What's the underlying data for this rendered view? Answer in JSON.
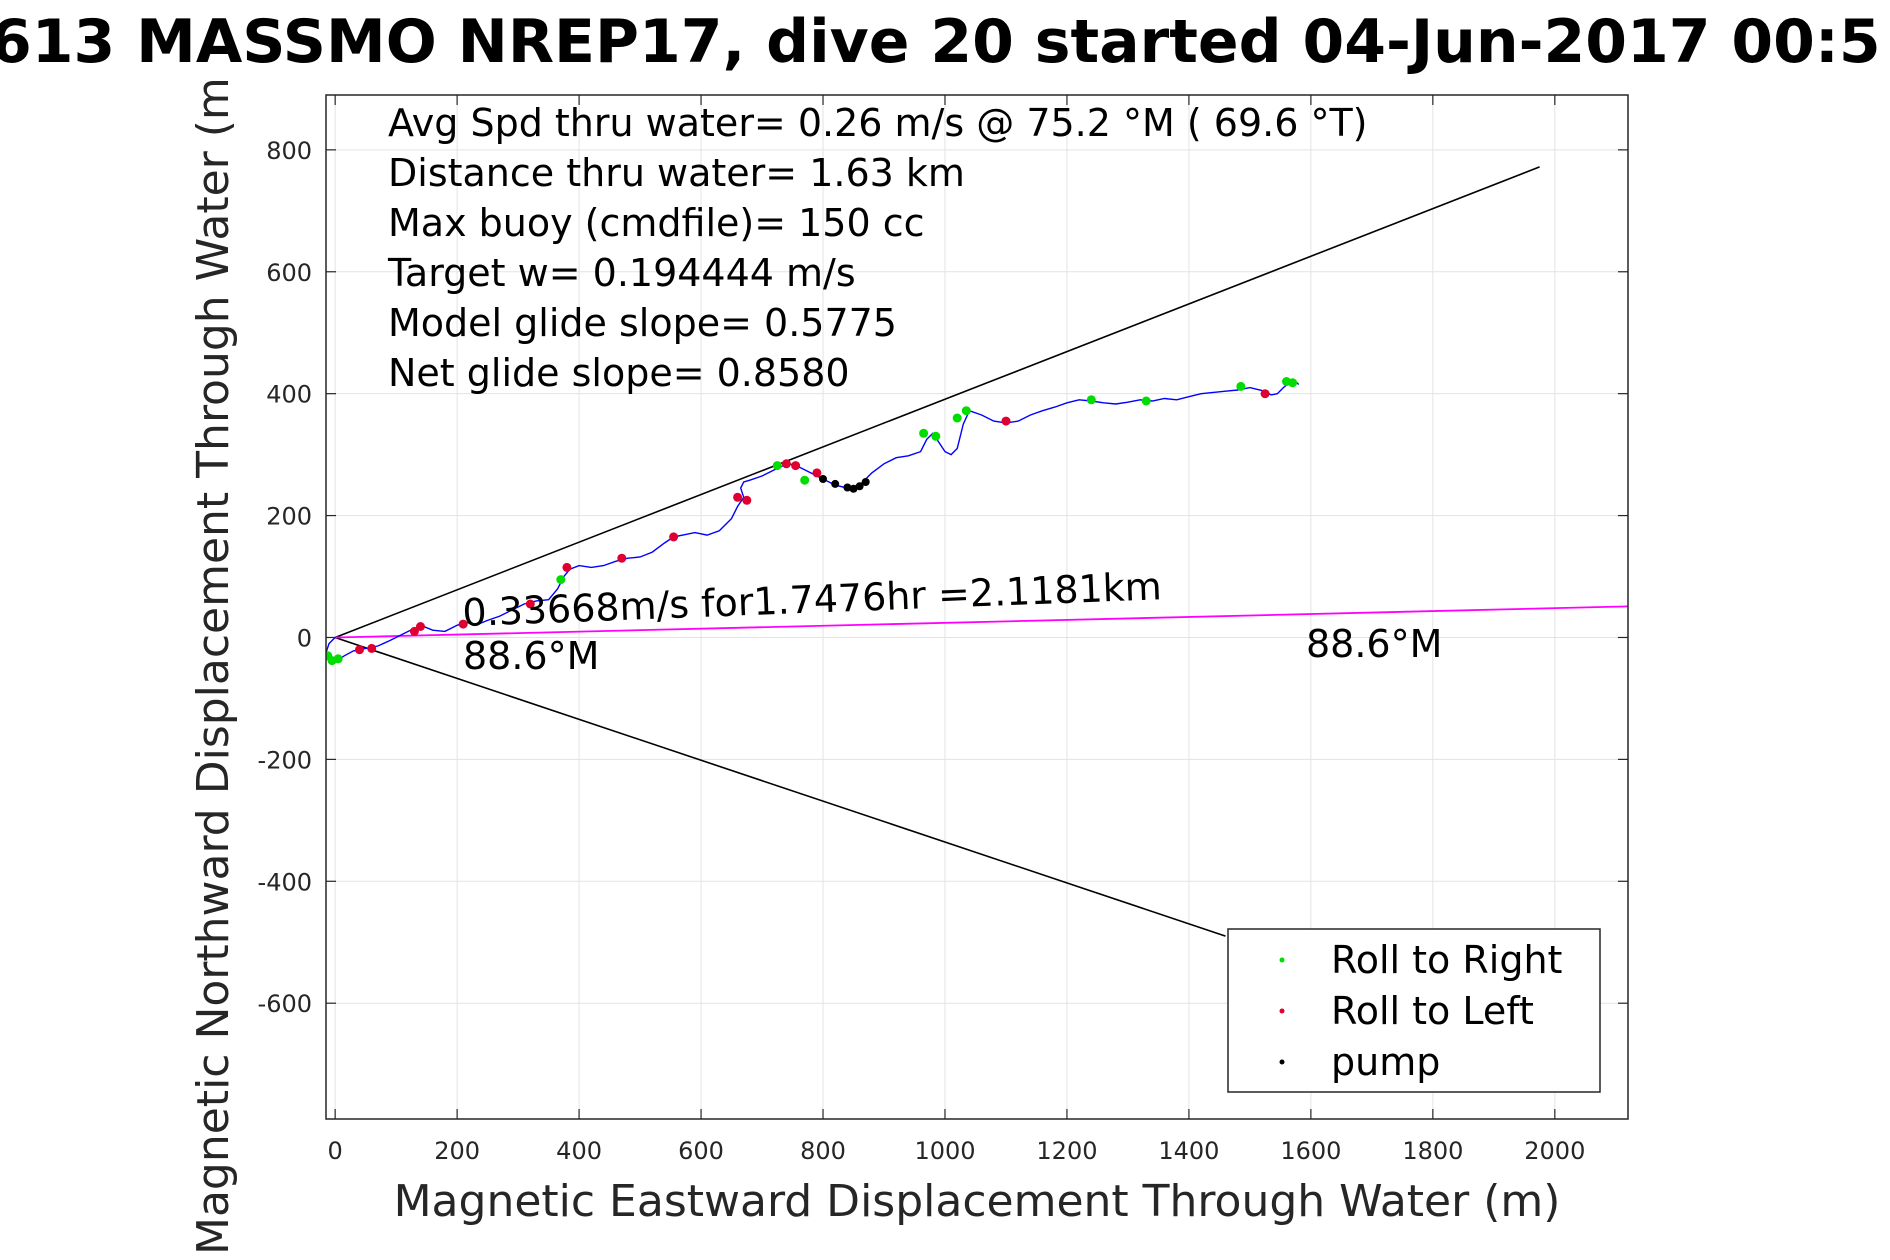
{
  "chart_data": {
    "type": "line",
    "title": "613 MASSMO NREP17, dive 20 started 04-Jun-2017 00:5",
    "xlabel": "Magnetic Eastward Displacement Through Water (m)",
    "ylabel": "Magnetic Northward Displacement Through Water (m",
    "xlim": [
      -15,
      2120
    ],
    "ylim": [
      -790,
      890
    ],
    "xticks": [
      0,
      200,
      400,
      600,
      800,
      1000,
      1200,
      1400,
      1600,
      1800,
      2000
    ],
    "xtick_labels": [
      "0",
      "200",
      "400",
      "600",
      "800",
      "1000",
      "1200",
      "1400",
      "1600",
      "1800",
      "2000"
    ],
    "yticks": [
      800,
      600,
      400,
      200,
      0,
      -200,
      -400,
      -600
    ],
    "ytick_labels": [
      "800",
      "600",
      "400",
      "200",
      "0",
      "-200",
      "-400",
      "-600"
    ],
    "grid": true,
    "info_lines": [
      "Avg Spd thru water=  0.26 m/s @  75.2 °M ( 69.6 °T)",
      "Distance thru water=  1.63 km",
      "Max buoy (cmdfile)= 150 cc",
      "Target w= 0.194444 m/s",
      "Model glide slope= 0.5775",
      "Net glide slope= 0.8580"
    ],
    "annotations": {
      "current": "0.33668m/s for1.7476hr =2.1181km",
      "heading_near": "88.6°M",
      "heading_far": "88.6°M"
    },
    "series": [
      {
        "name": "track",
        "color": "#0000ff",
        "x": [
          0,
          -10,
          -15,
          -12,
          0,
          15,
          30,
          50,
          70,
          90,
          110,
          130,
          145,
          160,
          180,
          200,
          215,
          230,
          250,
          270,
          290,
          310,
          330,
          350,
          365,
          375,
          385,
          400,
          420,
          440,
          460,
          480,
          500,
          520,
          540,
          555,
          570,
          590,
          610,
          630,
          650,
          660,
          670,
          665,
          670,
          680,
          700,
          720,
          735,
          740,
          745,
          760,
          780,
          800,
          820,
          840,
          860,
          880,
          900,
          920,
          940,
          960,
          970,
          980,
          990,
          1000,
          1010,
          1020,
          1030,
          1040,
          1060,
          1080,
          1100,
          1120,
          1140,
          1160,
          1180,
          1200,
          1220,
          1240,
          1260,
          1280,
          1300,
          1320,
          1340,
          1360,
          1380,
          1400,
          1420,
          1440,
          1460,
          1480,
          1500,
          1520,
          1535,
          1545,
          1555,
          1565,
          1575,
          1580
        ],
        "y": [
          0,
          -10,
          -25,
          -35,
          -40,
          -30,
          -22,
          -18,
          -14,
          -5,
          5,
          15,
          18,
          12,
          10,
          20,
          25,
          20,
          28,
          35,
          45,
          55,
          60,
          62,
          80,
          100,
          112,
          118,
          115,
          118,
          125,
          130,
          132,
          140,
          155,
          165,
          168,
          172,
          168,
          175,
          195,
          215,
          230,
          245,
          255,
          258,
          265,
          275,
          282,
          288,
          285,
          280,
          270,
          260,
          250,
          245,
          250,
          270,
          285,
          295,
          298,
          305,
          325,
          335,
          320,
          305,
          300,
          310,
          350,
          372,
          365,
          355,
          352,
          355,
          365,
          372,
          378,
          385,
          390,
          388,
          385,
          383,
          386,
          390,
          388,
          392,
          390,
          395,
          400,
          402,
          404,
          406,
          410,
          405,
          398,
          400,
          410,
          418,
          420,
          415
        ]
      },
      {
        "name": "current_line",
        "color": "#ff00ff",
        "x": [
          0,
          2120
        ],
        "y": [
          0,
          51
        ]
      },
      {
        "name": "upper_envelope",
        "color": "#000000",
        "x": [
          0,
          1975
        ],
        "y": [
          0,
          772
        ]
      },
      {
        "name": "lower_envelope",
        "color": "#000000",
        "x": [
          0,
          1460
        ],
        "y": [
          0,
          -490
        ]
      },
      {
        "name": "Roll to Right",
        "color": "#00dd00",
        "x": [
          -12,
          -5,
          5,
          370,
          725,
          770,
          965,
          985,
          1020,
          1035,
          1240,
          1330,
          1485,
          1560,
          1570
        ],
        "y": [
          -30,
          -38,
          -35,
          95,
          282,
          258,
          335,
          330,
          360,
          372,
          390,
          388,
          412,
          420,
          418
        ]
      },
      {
        "name": "Roll to Left",
        "color": "#e00030",
        "x": [
          40,
          60,
          130,
          140,
          210,
          320,
          380,
          470,
          555,
          660,
          675,
          740,
          755,
          790,
          1100,
          1525
        ],
        "y": [
          -20,
          -18,
          10,
          18,
          22,
          55,
          115,
          130,
          165,
          230,
          225,
          285,
          282,
          270,
          355,
          400
        ]
      },
      {
        "name": "pump",
        "color": "#000000",
        "x": [
          800,
          820,
          840,
          850,
          860,
          870
        ],
        "y": [
          260,
          252,
          246,
          244,
          248,
          255
        ]
      }
    ],
    "legend": {
      "position": "bottom-right",
      "entries": [
        {
          "label": "Roll to Right",
          "color": "#00dd00"
        },
        {
          "label": "Roll to Left",
          "color": "#e00030"
        },
        {
          "label": "pump",
          "color": "#000000"
        }
      ]
    }
  }
}
